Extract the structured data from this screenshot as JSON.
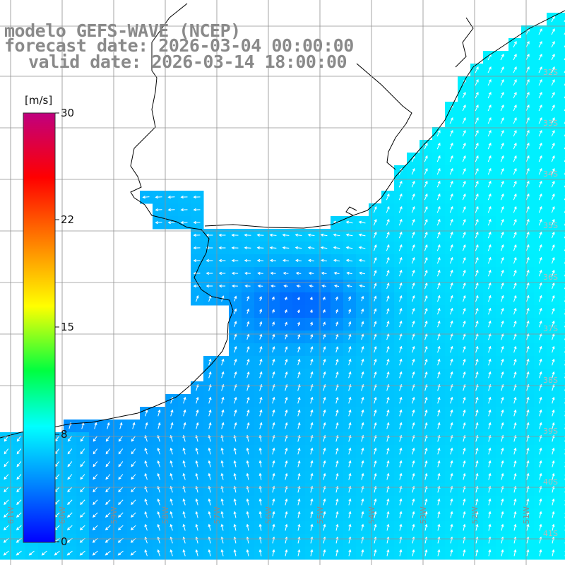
{
  "title": {
    "line1": "modelo GEFS-WAVE (NCEP)",
    "line2": "forecast date: 2026-03-04 00:00:00",
    "line3": "valid date: 2026-03-14 18:00:00"
  },
  "colorbar": {
    "unit": "[m/s]",
    "ticks": [
      "30",
      "22",
      "15",
      "8",
      "0"
    ],
    "colors": [
      "#0000ff",
      "#0080ff",
      "#00ffff",
      "#00ff00",
      "#ffff00",
      "#ff8000",
      "#ff0000",
      "#c0007f"
    ]
  },
  "axes": {
    "lat_labels": [
      "32S",
      "33S",
      "34S",
      "35S",
      "36S",
      "37S",
      "38S",
      "39S",
      "40S",
      "41S"
    ],
    "lon_labels": [
      "61W",
      "60W",
      "59W",
      "58W",
      "57W",
      "56W",
      "55W",
      "54W",
      "53W",
      "52W",
      "51W"
    ]
  },
  "colors": {
    "land": "#ffffff",
    "coastline": "#000000",
    "grid": "#909090",
    "arrows": "#ffffff"
  }
}
